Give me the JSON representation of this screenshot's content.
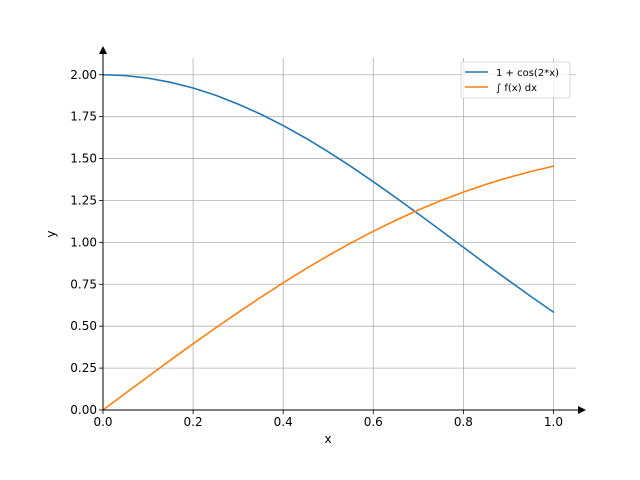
{
  "chart_data": {
    "type": "line",
    "title": "",
    "xlabel": "x",
    "ylabel": "y",
    "xlim": [
      0,
      1.05
    ],
    "ylim": [
      0,
      2.1
    ],
    "grid": true,
    "legend_position": "top-right",
    "x_ticks": [
      {
        "value": 0.0,
        "label": "0.0"
      },
      {
        "value": 0.2,
        "label": "0.2"
      },
      {
        "value": 0.4,
        "label": "0.4"
      },
      {
        "value": 0.6,
        "label": "0.6"
      },
      {
        "value": 0.8,
        "label": "0.8"
      },
      {
        "value": 1.0,
        "label": "1.0"
      }
    ],
    "y_ticks": [
      {
        "value": 0.0,
        "label": "0.00"
      },
      {
        "value": 0.25,
        "label": "0.25"
      },
      {
        "value": 0.5,
        "label": "0.50"
      },
      {
        "value": 0.75,
        "label": "0.75"
      },
      {
        "value": 1.0,
        "label": "1.00"
      },
      {
        "value": 1.25,
        "label": "1.25"
      },
      {
        "value": 1.5,
        "label": "1.50"
      },
      {
        "value": 1.75,
        "label": "1.75"
      },
      {
        "value": 2.0,
        "label": "2.00"
      }
    ],
    "x": [
      0.0,
      0.05,
      0.1,
      0.15,
      0.2,
      0.25,
      0.3,
      0.35,
      0.4,
      0.45,
      0.5,
      0.55,
      0.6,
      0.65,
      0.7,
      0.75,
      0.8,
      0.85,
      0.9,
      0.95,
      1.0
    ],
    "series": [
      {
        "name": "1 + cos(2*x)",
        "color": "#1f77b4",
        "values": [
          2.0,
          1.995,
          1.98,
          1.955,
          1.921,
          1.878,
          1.825,
          1.765,
          1.697,
          1.622,
          1.54,
          1.454,
          1.362,
          1.267,
          1.17,
          1.071,
          0.971,
          0.871,
          0.773,
          0.677,
          0.584
        ]
      },
      {
        "name": "∫ f(x) dx",
        "color": "#ff7f0e",
        "values": [
          0.0,
          0.1,
          0.199,
          0.298,
          0.395,
          0.49,
          0.582,
          0.672,
          0.759,
          0.842,
          0.921,
          0.996,
          1.066,
          1.132,
          1.193,
          1.249,
          1.3,
          1.346,
          1.387,
          1.423,
          1.455
        ]
      }
    ]
  }
}
